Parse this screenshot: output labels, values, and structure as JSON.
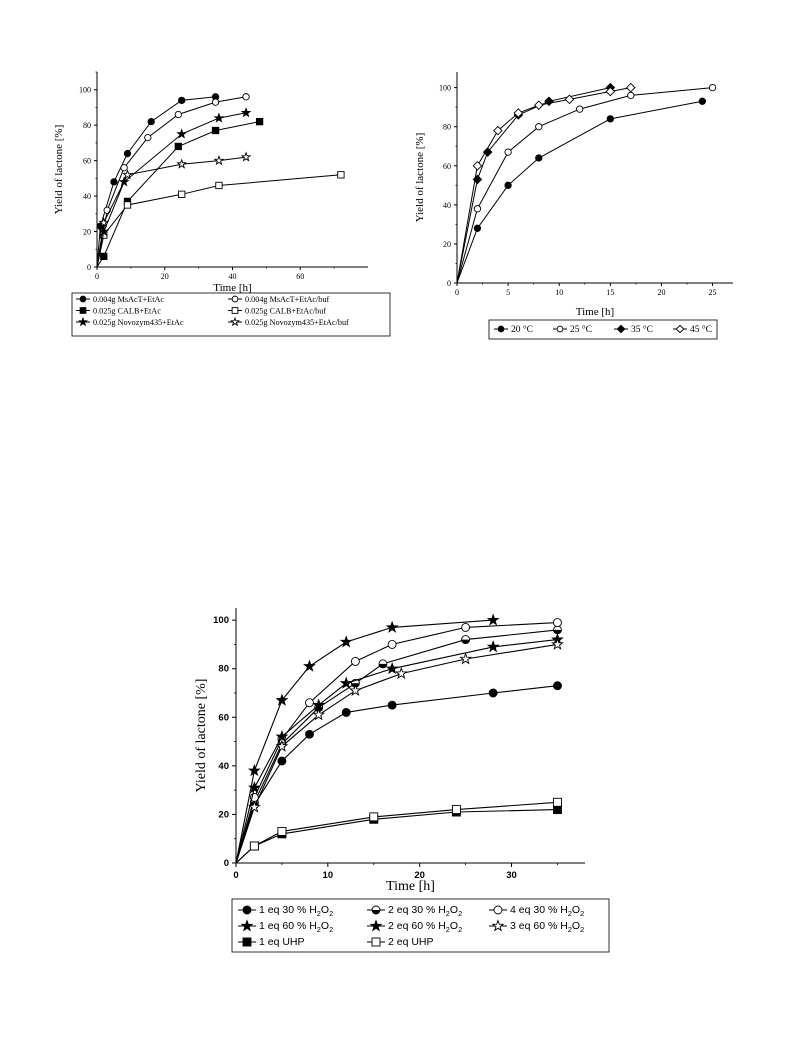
{
  "chart_data": [
    {
      "type": "line",
      "xlabel": "Time [h]",
      "ylabel": "Yield of lactone [%]",
      "xlim": [
        0,
        80
      ],
      "ylim": [
        0,
        110
      ],
      "xticks": [
        "0",
        "20",
        "40",
        "60"
      ],
      "yticks": [
        "0",
        "20",
        "40",
        "60",
        "80",
        "100"
      ],
      "legend_position": "bottom",
      "series": [
        {
          "name": "0.004g MsAcT+EtAc",
          "marker": "circle",
          "filled": true,
          "points": [
            [
              0,
              0
            ],
            [
              1,
              23
            ],
            [
              5,
              48
            ],
            [
              9,
              64
            ],
            [
              16,
              82
            ],
            [
              25,
              94
            ],
            [
              35,
              96
            ]
          ]
        },
        {
          "name": "0.004g MsAcT+EtAc/buf",
          "marker": "circle",
          "filled": false,
          "points": [
            [
              0,
              0
            ],
            [
              3,
              32
            ],
            [
              8,
              56
            ],
            [
              15,
              73
            ],
            [
              24,
              86
            ],
            [
              35,
              93
            ],
            [
              44,
              96
            ]
          ]
        },
        {
          "name": "0.025g CALB+EtAc",
          "marker": "square",
          "filled": true,
          "points": [
            [
              0,
              0
            ],
            [
              2,
              6
            ],
            [
              9,
              37
            ],
            [
              24,
              68
            ],
            [
              35,
              77
            ],
            [
              48,
              82
            ]
          ]
        },
        {
          "name": "0.025g CALB+EtAc/buf",
          "marker": "square",
          "filled": false,
          "points": [
            [
              0,
              0
            ],
            [
              2,
              18
            ],
            [
              9,
              35
            ],
            [
              25,
              41
            ],
            [
              36,
              46
            ],
            [
              72,
              52
            ]
          ]
        },
        {
          "name": "0.025g Novozym435+EtAc",
          "marker": "star",
          "filled": true,
          "points": [
            [
              0,
              0
            ],
            [
              2,
              20
            ],
            [
              8,
              48
            ],
            [
              25,
              75
            ],
            [
              36,
              84
            ],
            [
              44,
              87
            ]
          ]
        },
        {
          "name": "0.025g Novozym435+EtAc/buf",
          "marker": "star",
          "filled": false,
          "points": [
            [
              0,
              0
            ],
            [
              2,
              25
            ],
            [
              9,
              52
            ],
            [
              25,
              58
            ],
            [
              36,
              60
            ],
            [
              44,
              62
            ]
          ]
        }
      ]
    },
    {
      "type": "line",
      "xlabel": "Time [h]",
      "ylabel": "Yield of lactone [%]",
      "xlim": [
        0,
        27
      ],
      "ylim": [
        0,
        108
      ],
      "xticks": [
        "0",
        "5",
        "10",
        "15",
        "20",
        "25"
      ],
      "yticks": [
        "0",
        "20",
        "40",
        "60",
        "80",
        "100"
      ],
      "legend_position": "bottom",
      "series": [
        {
          "name": "20 °C",
          "marker": "circle",
          "filled": true,
          "points": [
            [
              0,
              0
            ],
            [
              2,
              28
            ],
            [
              5,
              50
            ],
            [
              8,
              64
            ],
            [
              15,
              84
            ],
            [
              24,
              93
            ]
          ]
        },
        {
          "name": "25 °C",
          "marker": "circle",
          "filled": false,
          "points": [
            [
              0,
              0
            ],
            [
              2,
              38
            ],
            [
              5,
              67
            ],
            [
              8,
              80
            ],
            [
              12,
              89
            ],
            [
              17,
              96
            ],
            [
              25,
              100
            ]
          ]
        },
        {
          "name": "35 °C",
          "marker": "diamond",
          "filled": true,
          "points": [
            [
              0,
              0
            ],
            [
              2,
              53
            ],
            [
              3,
              67
            ],
            [
              6,
              86
            ],
            [
              9,
              93
            ],
            [
              15,
              100
            ]
          ]
        },
        {
          "name": "45 °C",
          "marker": "diamond",
          "filled": false,
          "points": [
            [
              0,
              0
            ],
            [
              2,
              60
            ],
            [
              4,
              78
            ],
            [
              6,
              87
            ],
            [
              8,
              91
            ],
            [
              11,
              94
            ],
            [
              15,
              98
            ],
            [
              17,
              100
            ]
          ]
        }
      ]
    },
    {
      "type": "line",
      "xlabel": "Time [h]",
      "ylabel": "Yield of lactone [%]",
      "xlim": [
        0,
        38
      ],
      "ylim": [
        0,
        105
      ],
      "xticks": [
        "0",
        "10",
        "20",
        "30"
      ],
      "yticks": [
        "0",
        "20",
        "40",
        "60",
        "80",
        "100"
      ],
      "legend_position": "bottom",
      "series": [
        {
          "name": "1 eq 30 % H2O2",
          "marker": "circle",
          "filled": true,
          "points": [
            [
              0,
              0
            ],
            [
              2,
              24
            ],
            [
              5,
              42
            ],
            [
              8,
              53
            ],
            [
              12,
              62
            ],
            [
              17,
              65
            ],
            [
              28,
              70
            ],
            [
              35,
              73
            ]
          ]
        },
        {
          "name": "2 eq 30 % H2O2",
          "marker": "halfcircle",
          "filled": true,
          "points": [
            [
              0,
              0
            ],
            [
              2,
              25
            ],
            [
              5,
              49
            ],
            [
              9,
              64
            ],
            [
              13,
              74
            ],
            [
              16,
              82
            ],
            [
              25,
              92
            ],
            [
              35,
              96
            ]
          ]
        },
        {
          "name": "4 eq 30 % H2O2",
          "marker": "circle",
          "filled": false,
          "points": [
            [
              0,
              0
            ],
            [
              2,
              27
            ],
            [
              5,
              51
            ],
            [
              8,
              66
            ],
            [
              13,
              83
            ],
            [
              17,
              90
            ],
            [
              25,
              97
            ],
            [
              35,
              99
            ]
          ]
        },
        {
          "name": "1 eq 60 % H2O2",
          "marker": "star",
          "filled": true,
          "points": [
            [
              0,
              0
            ],
            [
              2,
              31
            ],
            [
              5,
              52
            ],
            [
              9,
              65
            ],
            [
              12,
              74
            ],
            [
              17,
              80
            ],
            [
              28,
              89
            ],
            [
              35,
              92
            ]
          ]
        },
        {
          "name": "2 eq 60 % H2O2",
          "marker": "star",
          "filled": true,
          "points": [
            [
              0,
              0
            ],
            [
              2,
              38
            ],
            [
              5,
              67
            ],
            [
              8,
              81
            ],
            [
              12,
              91
            ],
            [
              17,
              97
            ],
            [
              28,
              100
            ]
          ]
        },
        {
          "name": "3 eq 60 % H2O2",
          "marker": "star",
          "filled": false,
          "points": [
            [
              0,
              0
            ],
            [
              2,
              23
            ],
            [
              5,
              48
            ],
            [
              9,
              61
            ],
            [
              13,
              71
            ],
            [
              18,
              78
            ],
            [
              25,
              84
            ],
            [
              35,
              90
            ]
          ]
        },
        {
          "name": "1 eq UHP",
          "marker": "square",
          "filled": true,
          "points": [
            [
              0,
              0
            ],
            [
              2,
              7
            ],
            [
              5,
              12
            ],
            [
              15,
              18
            ],
            [
              24,
              21
            ],
            [
              35,
              22
            ]
          ]
        },
        {
          "name": "2 eq UHP",
          "marker": "square",
          "filled": false,
          "points": [
            [
              0,
              0
            ],
            [
              2,
              7
            ],
            [
              5,
              13
            ],
            [
              15,
              19
            ],
            [
              24,
              22
            ],
            [
              35,
              25
            ]
          ]
        }
      ]
    }
  ]
}
